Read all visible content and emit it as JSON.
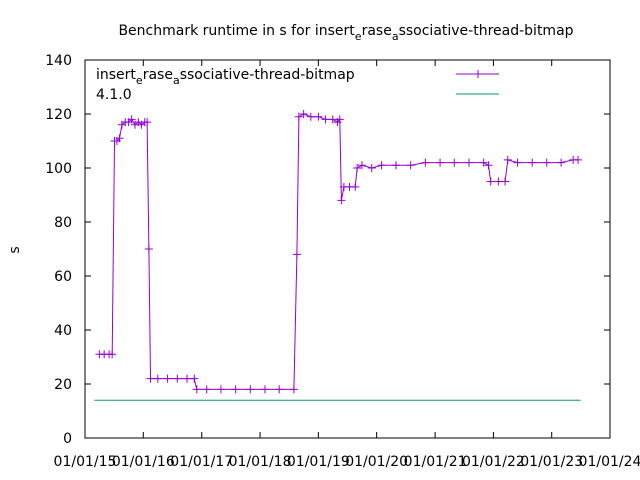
{
  "chart_data": {
    "type": "line",
    "title_parts": [
      "Benchmark runtime in s for insert",
      "e",
      "rase",
      "a",
      "ssociative-thread-bitmap"
    ],
    "ylabel": "s",
    "xlabel": "",
    "ylim": [
      0,
      140
    ],
    "yticks": [
      0,
      20,
      40,
      60,
      80,
      100,
      120,
      140
    ],
    "xlim": [
      "2015-01-01",
      "2024-01-01"
    ],
    "xticks": [
      "01/01/15",
      "01/01/16",
      "01/01/17",
      "01/01/18",
      "01/01/19",
      "01/01/20",
      "01/01/21",
      "01/01/22",
      "01/01/23",
      "01/01/24"
    ],
    "legend_placement": "top-right",
    "grid": false,
    "series": [
      {
        "name_parts": [
          "insert",
          "e",
          "rase",
          "a",
          "ssociative-thread-bitmap"
        ],
        "color": "#9400d3",
        "marker": "plus",
        "points": [
          [
            "2015-04-01",
            31
          ],
          [
            "2015-05-01",
            31
          ],
          [
            "2015-06-01",
            31
          ],
          [
            "2015-06-20",
            31
          ],
          [
            "2015-07-05",
            110
          ],
          [
            "2015-07-20",
            110
          ],
          [
            "2015-08-05",
            111
          ],
          [
            "2015-08-20",
            116
          ],
          [
            "2015-09-10",
            117
          ],
          [
            "2015-10-01",
            117
          ],
          [
            "2015-10-20",
            118
          ],
          [
            "2015-11-10",
            116
          ],
          [
            "2015-12-01",
            117
          ],
          [
            "2015-12-20",
            116
          ],
          [
            "2016-01-10",
            117
          ],
          [
            "2016-01-25",
            117
          ],
          [
            "2016-02-05",
            70
          ],
          [
            "2016-02-15",
            22
          ],
          [
            "2016-04-01",
            22
          ],
          [
            "2016-06-01",
            22
          ],
          [
            "2016-08-01",
            22
          ],
          [
            "2016-10-01",
            22
          ],
          [
            "2016-11-15",
            22
          ],
          [
            "2016-12-01",
            18
          ],
          [
            "2017-02-01",
            18
          ],
          [
            "2017-05-01",
            18
          ],
          [
            "2017-08-01",
            18
          ],
          [
            "2017-11-01",
            18
          ],
          [
            "2018-02-01",
            18
          ],
          [
            "2018-05-01",
            18
          ],
          [
            "2018-08-01",
            18
          ],
          [
            "2018-08-20",
            68
          ],
          [
            "2018-09-01",
            119
          ],
          [
            "2018-10-01",
            120
          ],
          [
            "2018-11-15",
            119
          ],
          [
            "2019-01-01",
            119
          ],
          [
            "2019-02-15",
            118
          ],
          [
            "2019-04-01",
            118
          ],
          [
            "2019-05-01",
            117
          ],
          [
            "2019-05-15",
            118
          ],
          [
            "2019-05-25",
            88
          ],
          [
            "2019-06-10",
            93
          ],
          [
            "2019-07-15",
            93
          ],
          [
            "2019-08-20",
            93
          ],
          [
            "2019-09-01",
            100
          ],
          [
            "2019-10-01",
            101
          ],
          [
            "2019-12-01",
            100
          ],
          [
            "2020-02-01",
            101
          ],
          [
            "2020-05-01",
            101
          ],
          [
            "2020-08-01",
            101
          ],
          [
            "2020-11-01",
            102
          ],
          [
            "2021-02-01",
            102
          ],
          [
            "2021-05-01",
            102
          ],
          [
            "2021-08-01",
            102
          ],
          [
            "2021-11-01",
            102
          ],
          [
            "2021-12-01",
            101
          ],
          [
            "2021-12-15",
            95
          ],
          [
            "2022-02-01",
            95
          ],
          [
            "2022-03-15",
            95
          ],
          [
            "2022-04-01",
            103
          ],
          [
            "2022-06-01",
            102
          ],
          [
            "2022-09-01",
            102
          ],
          [
            "2022-12-01",
            102
          ],
          [
            "2023-03-01",
            102
          ],
          [
            "2023-05-15",
            103
          ],
          [
            "2023-06-15",
            103
          ]
        ]
      },
      {
        "name": "4.1.0",
        "color": "#009e73",
        "marker": "none",
        "points": [
          [
            "2015-03-01",
            14
          ],
          [
            "2023-07-01",
            14
          ]
        ]
      }
    ]
  }
}
